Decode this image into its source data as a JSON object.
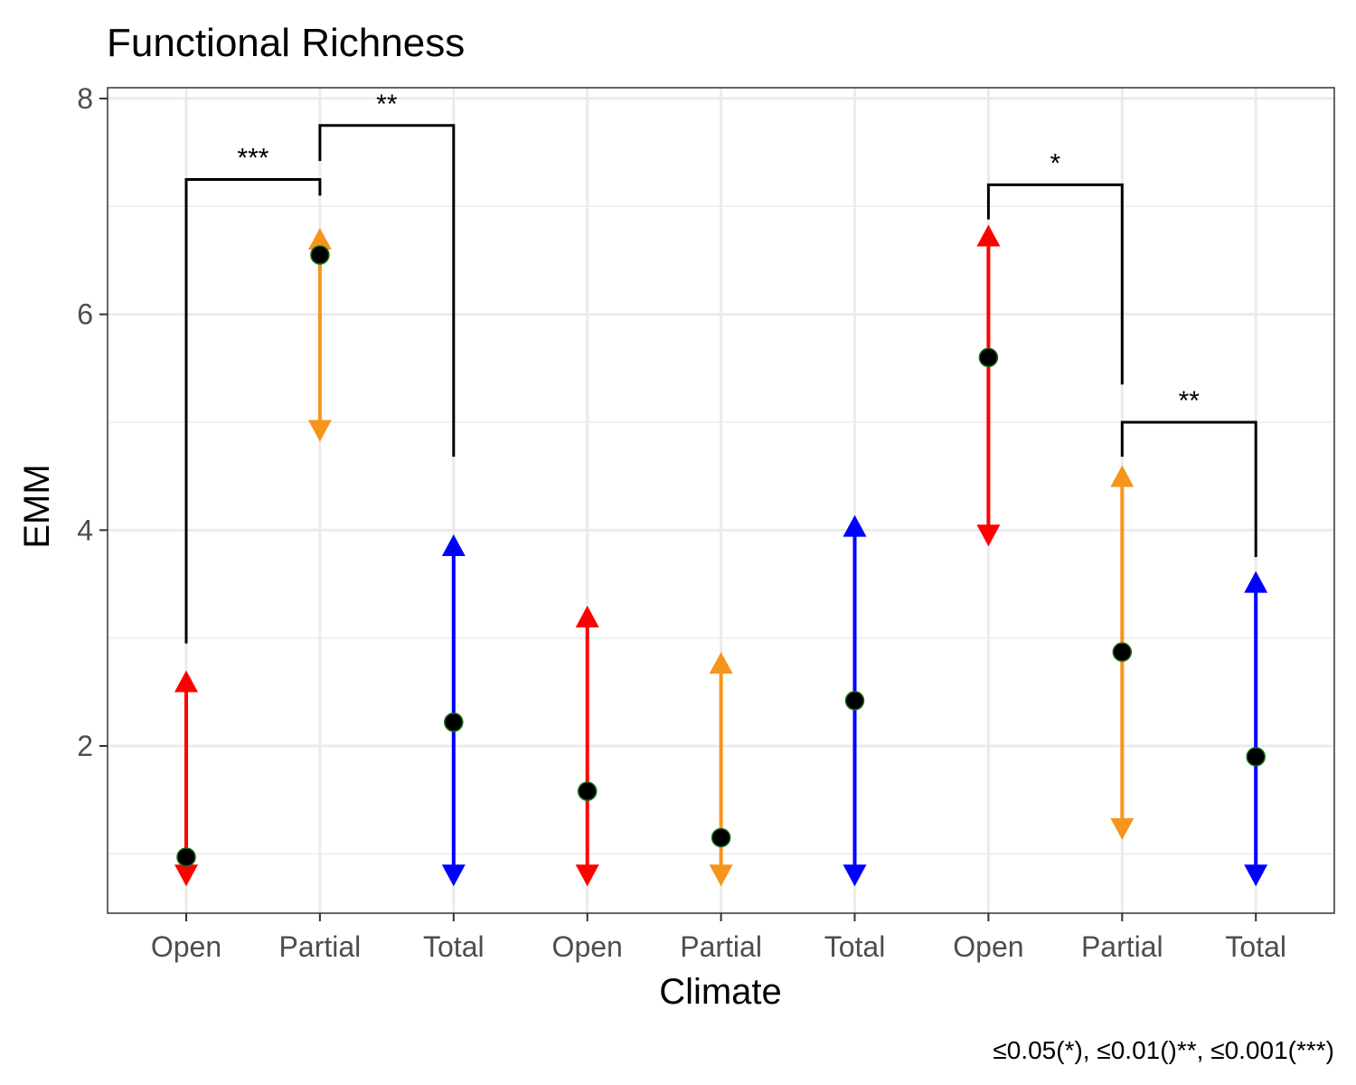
{
  "chart_data": {
    "type": "scatter",
    "title": "Functional Richness",
    "xlabel": "Climate",
    "ylabel": "EMM",
    "caption": "≤0.05(*), ≤0.01()**, ≤0.001(***)",
    "ylim": [
      0.45,
      8.1
    ],
    "y_ticks": [
      2,
      4,
      6,
      8
    ],
    "y_tick_labels": [
      "2",
      "4",
      "6",
      "8"
    ],
    "categories": [
      "Open",
      "Partial",
      "Total",
      "Open",
      "Partial",
      "Total",
      "Open",
      "Partial",
      "Total"
    ],
    "colors": {
      "Open": "#ff0000",
      "Partial": "#f7941d",
      "Total": "#0000ff",
      "point": "#000000",
      "point_outline": "#1a6b1a"
    },
    "points": [
      {
        "x": 1,
        "category": "Open",
        "emm": 0.97,
        "lower": 0.75,
        "upper": 2.65
      },
      {
        "x": 2,
        "category": "Partial",
        "emm": 6.55,
        "lower": 4.87,
        "upper": 6.75
      },
      {
        "x": 3,
        "category": "Total",
        "emm": 2.22,
        "lower": 0.75,
        "upper": 3.91
      },
      {
        "x": 4,
        "category": "Open",
        "emm": 1.58,
        "lower": 0.75,
        "upper": 3.25
      },
      {
        "x": 5,
        "category": "Partial",
        "emm": 1.15,
        "lower": 0.75,
        "upper": 2.82
      },
      {
        "x": 6,
        "category": "Total",
        "emm": 2.42,
        "lower": 0.75,
        "upper": 4.09
      },
      {
        "x": 7,
        "category": "Open",
        "emm": 5.6,
        "lower": 3.9,
        "upper": 6.78
      },
      {
        "x": 8,
        "category": "Partial",
        "emm": 2.87,
        "lower": 1.18,
        "upper": 4.55
      },
      {
        "x": 9,
        "category": "Total",
        "emm": 1.9,
        "lower": 0.75,
        "upper": 3.57
      }
    ],
    "significance": [
      {
        "x1": 1,
        "x2": 2,
        "y": 7.25,
        "left_end": 2.95,
        "right_end": 7.1,
        "label": "***"
      },
      {
        "x1": 2,
        "x2": 3,
        "y": 7.75,
        "left_end": 7.42,
        "right_end": 4.68,
        "label": "**"
      },
      {
        "x1": 7,
        "x2": 8,
        "y": 7.2,
        "left_end": 6.88,
        "right_end": 5.35,
        "label": "*"
      },
      {
        "x1": 8,
        "x2": 9,
        "y": 5.0,
        "left_end": 4.68,
        "right_end": 3.75,
        "label": "**"
      }
    ]
  }
}
